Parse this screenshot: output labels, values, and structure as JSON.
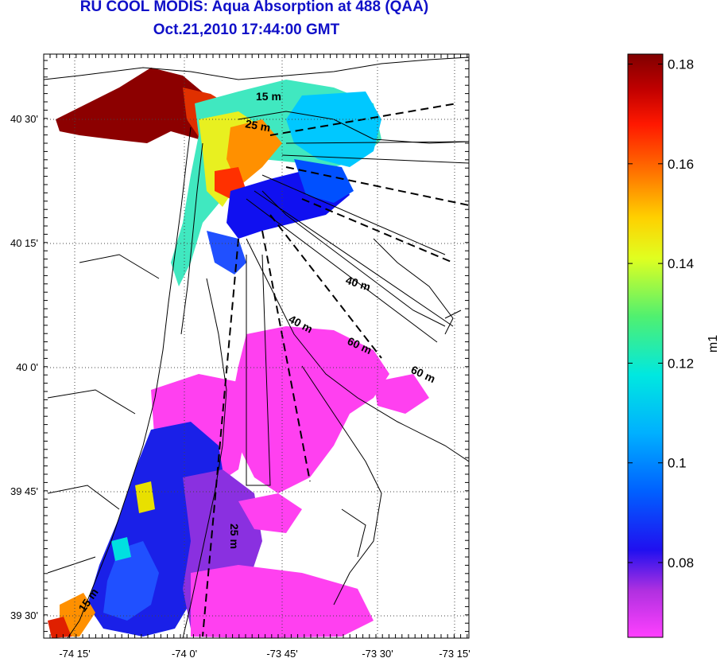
{
  "map": {
    "title_line1": "RU COOL MODIS: Aqua Absorption at 488 (QAA)",
    "title_line2": "Oct.21,2010 17:44:00 GMT",
    "lon_ticks": [
      "-74 15'",
      "-74 0'",
      "-73 45'",
      "-73 30'",
      "-73 15'"
    ],
    "lat_ticks": [
      "40 30'",
      "40 15'",
      "40 0'",
      "39 45'",
      "39 30'"
    ],
    "depth_labels": [
      "15 m",
      "25 m",
      "40 m",
      "40 m",
      "60 m",
      "60 m",
      "25 m",
      "15 m"
    ],
    "grid": true
  },
  "colorbar": {
    "unit": "m1",
    "min": 0.065,
    "max": 0.182,
    "tick_labels": [
      "0.18",
      "0.16",
      "0.14",
      "0.12",
      "0.1",
      "0.08"
    ],
    "tick_values": [
      0.18,
      0.16,
      0.14,
      0.12,
      0.1,
      0.08
    ],
    "colormap": [
      "#ff3cff",
      "#aa30e0",
      "#3010f0",
      "#0050ff",
      "#00a0ff",
      "#00e0e0",
      "#40f080",
      "#b0f030",
      "#ffff00",
      "#ffb000",
      "#ff6000",
      "#ff1000",
      "#c00000",
      "#800000"
    ]
  }
}
